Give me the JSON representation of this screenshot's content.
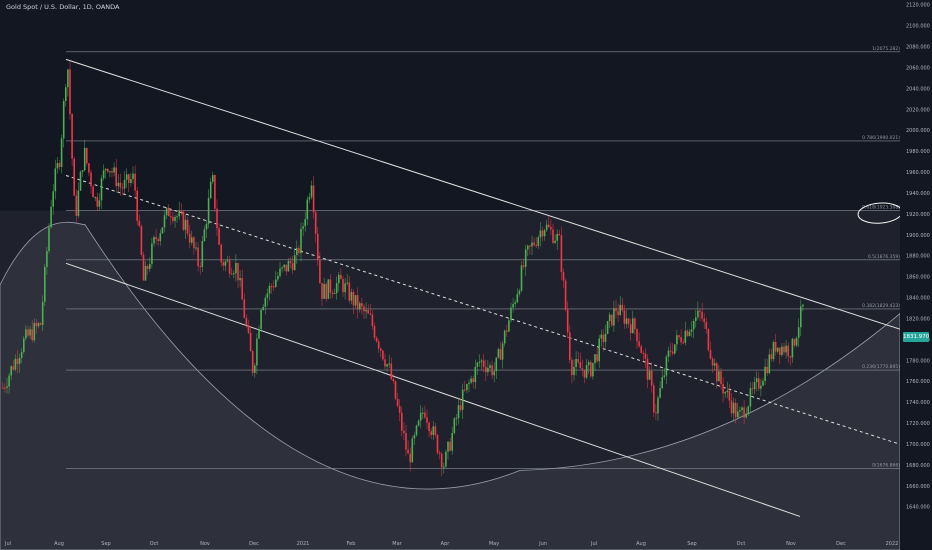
{
  "symbol_title": "Gold Spot / U.S. Dollar, 1D, OANDA",
  "last_price": "1831.970",
  "colors": {
    "background": "#131722",
    "up": "#4caf50",
    "down": "#f23645",
    "text": "#d1d4dc",
    "axis_text": "#b2b5be",
    "line": "#d9d9d9",
    "badge": "#26a69a"
  },
  "chart_data": {
    "type": "candlestick",
    "title": "Gold Spot / U.S. Dollar, 1D, OANDA",
    "ylim": [
      1640,
      2120
    ],
    "y_ticks": [
      "1640.000",
      "1660.000",
      "1680.000",
      "1700.000",
      "1720.000",
      "1740.000",
      "1760.000",
      "1780.000",
      "1800.000",
      "1820.000",
      "1840.000",
      "1860.000",
      "1880.000",
      "1900.000",
      "1920.000",
      "1940.000",
      "1960.000",
      "1980.000",
      "2000.000",
      "2020.000",
      "2040.000",
      "2060.000",
      "2080.000",
      "2100.000",
      "2120.000"
    ],
    "x_ticks": [
      "Jul",
      "Aug",
      "Sep",
      "Oct",
      "Nov",
      "Dec",
      "2021",
      "Feb",
      "Mar",
      "Apr",
      "May",
      "Jun",
      "Jul",
      "Aug",
      "Sep",
      "Oct",
      "Nov",
      "Dec",
      "2022"
    ],
    "last_value": 1831.97,
    "fibonacci_levels": [
      {
        "label": "1(2075.282)",
        "value": 2075.282
      },
      {
        "label": "0.786(1990.021)",
        "value": 1990.021
      },
      {
        "label": "0.618(1923.308)",
        "value": 1923.308
      },
      {
        "label": "0.5(1876.359)",
        "value": 1876.359
      },
      {
        "label": "0.382(1829.423)",
        "value": 1829.423
      },
      {
        "label": "0.236(1770.895)",
        "value": 1770.895
      },
      {
        "label": "0(1676.866)",
        "value": 1676.866
      }
    ],
    "price_path": [
      {
        "t": "2020-07-01",
        "p": 1770
      },
      {
        "t": "2020-07-10",
        "p": 1800
      },
      {
        "t": "2020-07-20",
        "p": 1815
      },
      {
        "t": "2020-07-27",
        "p": 1940
      },
      {
        "t": "2020-08-01",
        "p": 1975
      },
      {
        "t": "2020-08-06",
        "p": 2070
      },
      {
        "t": "2020-08-11",
        "p": 1915
      },
      {
        "t": "2020-08-17",
        "p": 1980
      },
      {
        "t": "2020-08-25",
        "p": 1930
      },
      {
        "t": "2020-09-01",
        "p": 1970
      },
      {
        "t": "2020-09-10",
        "p": 1945
      },
      {
        "t": "2020-09-18",
        "p": 1955
      },
      {
        "t": "2020-09-24",
        "p": 1855
      },
      {
        "t": "2020-10-01",
        "p": 1895
      },
      {
        "t": "2020-10-10",
        "p": 1925
      },
      {
        "t": "2020-10-20",
        "p": 1910
      },
      {
        "t": "2020-10-28",
        "p": 1870
      },
      {
        "t": "2020-11-05",
        "p": 1955
      },
      {
        "t": "2020-11-10",
        "p": 1875
      },
      {
        "t": "2020-11-20",
        "p": 1870
      },
      {
        "t": "2020-11-30",
        "p": 1770
      },
      {
        "t": "2020-12-05",
        "p": 1835
      },
      {
        "t": "2020-12-15",
        "p": 1860
      },
      {
        "t": "2020-12-28",
        "p": 1880
      },
      {
        "t": "2021-01-06",
        "p": 1955
      },
      {
        "t": "2021-01-12",
        "p": 1845
      },
      {
        "t": "2021-01-25",
        "p": 1855
      },
      {
        "t": "2021-02-03",
        "p": 1835
      },
      {
        "t": "2021-02-12",
        "p": 1820
      },
      {
        "t": "2021-02-24",
        "p": 1770
      },
      {
        "t": "2021-03-08",
        "p": 1685
      },
      {
        "t": "2021-03-18",
        "p": 1735
      },
      {
        "t": "2021-03-31",
        "p": 1680
      },
      {
        "t": "2021-04-10",
        "p": 1740
      },
      {
        "t": "2021-04-22",
        "p": 1780
      },
      {
        "t": "2021-05-01",
        "p": 1770
      },
      {
        "t": "2021-05-12",
        "p": 1830
      },
      {
        "t": "2021-05-21",
        "p": 1880
      },
      {
        "t": "2021-06-01",
        "p": 1910
      },
      {
        "t": "2021-06-10",
        "p": 1895
      },
      {
        "t": "2021-06-17",
        "p": 1775
      },
      {
        "t": "2021-06-28",
        "p": 1770
      },
      {
        "t": "2021-07-06",
        "p": 1800
      },
      {
        "t": "2021-07-15",
        "p": 1830
      },
      {
        "t": "2021-07-28",
        "p": 1810
      },
      {
        "t": "2021-08-06",
        "p": 1760
      },
      {
        "t": "2021-08-09",
        "p": 1730
      },
      {
        "t": "2021-08-18",
        "p": 1790
      },
      {
        "t": "2021-08-31",
        "p": 1815
      },
      {
        "t": "2021-09-06",
        "p": 1825
      },
      {
        "t": "2021-09-16",
        "p": 1765
      },
      {
        "t": "2021-09-29",
        "p": 1725
      },
      {
        "t": "2021-10-12",
        "p": 1760
      },
      {
        "t": "2021-10-22",
        "p": 1795
      },
      {
        "t": "2021-11-01",
        "p": 1790
      },
      {
        "t": "2021-11-05",
        "p": 1815
      },
      {
        "t": "2021-11-08",
        "p": 1832
      }
    ]
  }
}
